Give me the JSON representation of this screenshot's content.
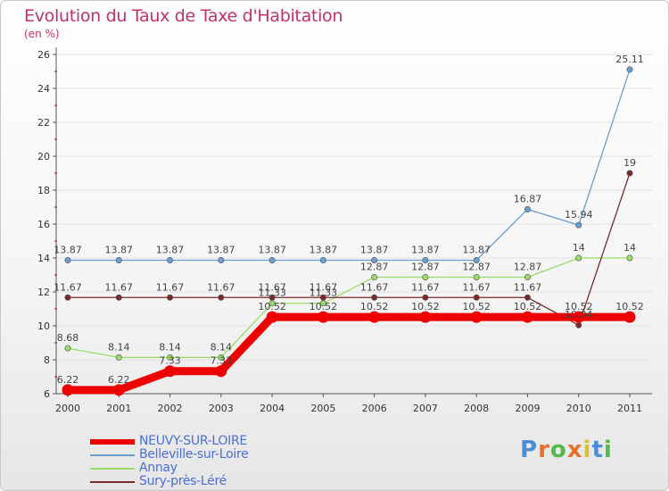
{
  "chart_data": {
    "type": "line",
    "title": "Evolution du Taux de Taxe d'Habitation",
    "ylabel": "(en %)",
    "xlabel": "",
    "categories": [
      "2000",
      "2001",
      "2002",
      "2003",
      "2004",
      "2005",
      "2006",
      "2007",
      "2008",
      "2009",
      "2010",
      "2011"
    ],
    "ylim": [
      6,
      26
    ],
    "yticks": [
      6,
      8,
      10,
      12,
      14,
      16,
      18,
      20,
      22,
      24,
      26
    ],
    "series": [
      {
        "name": "NEUVY-SUR-LOIRE",
        "color": "#ee0000",
        "values": [
          6.22,
          6.22,
          7.33,
          7.33,
          10.52,
          10.52,
          10.52,
          10.52,
          10.52,
          10.52,
          10.52,
          10.52
        ],
        "labels": [
          "6.22",
          "6.22",
          "7.33",
          "7.33",
          "10.52",
          "10.52",
          "10.52",
          "10.52",
          "10.52",
          "10.52",
          "10.52",
          "10.52"
        ]
      },
      {
        "name": "Belleville-sur-Loire",
        "color": "#6a9ed0",
        "values": [
          13.87,
          13.87,
          13.87,
          13.87,
          13.87,
          13.87,
          13.87,
          13.87,
          13.87,
          16.87,
          15.94,
          25.11
        ],
        "labels": [
          "13.87",
          "13.87",
          "13.87",
          "13.87",
          "13.87",
          "13.87",
          "13.87",
          "13.87",
          "13.87",
          "16.87",
          "15.94",
          "25.11"
        ]
      },
      {
        "name": "Annay",
        "color": "#99dd66",
        "values": [
          8.68,
          8.14,
          8.14,
          8.14,
          11.33,
          11.33,
          12.87,
          12.87,
          12.87,
          12.87,
          14,
          14
        ],
        "labels": [
          "8.68",
          "8.14",
          "8.14",
          "8.14",
          "11.33",
          "11.33",
          "12.87",
          "12.87",
          "12.87",
          "12.87",
          "14",
          "14"
        ]
      },
      {
        "name": "Sury-près-Léré",
        "color": "#7a2a2a",
        "values": [
          11.67,
          11.67,
          11.67,
          11.67,
          11.67,
          11.67,
          11.67,
          11.67,
          11.67,
          11.67,
          10.04,
          19
        ],
        "labels": [
          "11.67",
          "11.67",
          "11.67",
          "11.67",
          "11.67",
          "11.67",
          "11.67",
          "11.67",
          "11.67",
          "11.67",
          "10.04",
          "19"
        ]
      }
    ]
  },
  "legend": {
    "items": [
      {
        "label": "NEUVY-SUR-LOIRE",
        "color": "#ee0000"
      },
      {
        "label": "Belleville-sur-Loire",
        "color": "#6a9ed0"
      },
      {
        "label": "Annay",
        "color": "#99dd66"
      },
      {
        "label": "Sury-près-Léré",
        "color": "#7a2a2a"
      }
    ]
  },
  "logo": {
    "text": "Proxiti",
    "letter_colors": [
      "#4a8fd6",
      "#e8722a",
      "#56b848",
      "#e8722a",
      "#d8c430",
      "#4a8fd6",
      "#56b848"
    ]
  }
}
